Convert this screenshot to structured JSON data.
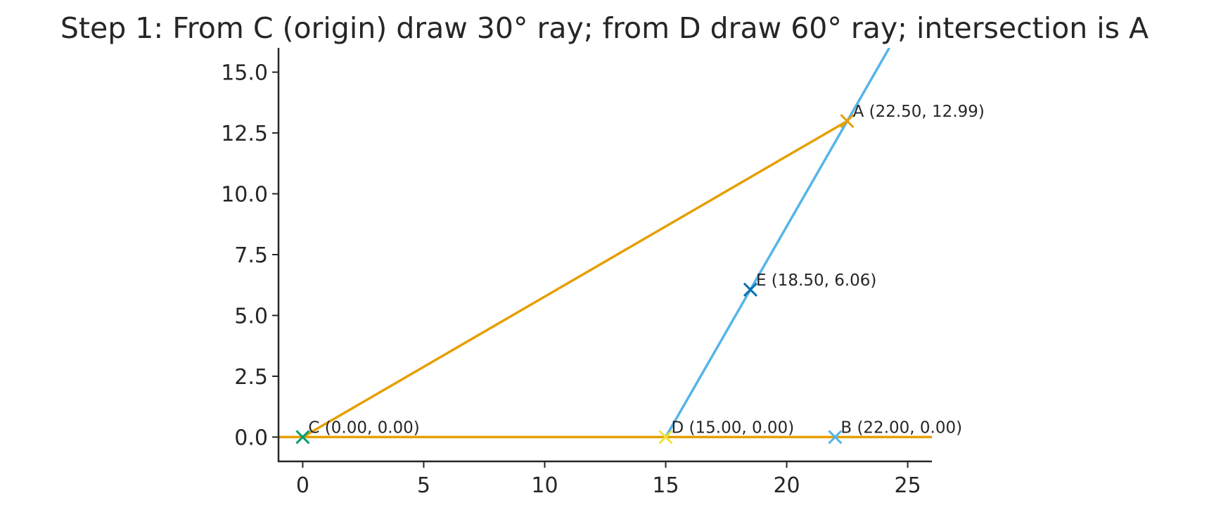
{
  "chart_data": {
    "type": "line",
    "title": "Step 1: From C (origin) draw 30° ray; from D draw 60° ray; intersection is A",
    "xlabel": "",
    "ylabel": "",
    "xlim": [
      -1,
      26
    ],
    "ylim": [
      -1,
      16
    ],
    "grid": false,
    "x_ticks": [
      0,
      5,
      10,
      15,
      20,
      25
    ],
    "x_tick_labels": [
      "0",
      "5",
      "10",
      "15",
      "20",
      "25"
    ],
    "y_ticks": [
      0.0,
      2.5,
      5.0,
      7.5,
      10.0,
      12.5,
      15.0
    ],
    "y_tick_labels": [
      "0.0",
      "2.5",
      "5.0",
      "7.5",
      "10.0",
      "12.5",
      "15.0"
    ],
    "lines": [
      {
        "id": "baseline",
        "color": "#E69F00",
        "points": [
          [
            -1,
            0
          ],
          [
            26,
            0
          ]
        ]
      },
      {
        "id": "ray-30-from-c",
        "color": "#E69F00",
        "points": [
          [
            0,
            0
          ],
          [
            22.5,
            12.99
          ]
        ]
      },
      {
        "id": "ray-60-from-d",
        "color": "#56B4E9",
        "points": [
          [
            15,
            0
          ],
          [
            24.24,
            16
          ]
        ]
      }
    ],
    "points": [
      {
        "name": "C",
        "x": 0,
        "y": 0,
        "label": "C (0.00, 0.00)",
        "color": "#009E73"
      },
      {
        "name": "D",
        "x": 15,
        "y": 0,
        "label": "D (15.00, 0.00)",
        "color": "#F0E442"
      },
      {
        "name": "B",
        "x": 22,
        "y": 0,
        "label": "B (22.00, 0.00)",
        "color": "#56B4E9"
      },
      {
        "name": "E",
        "x": 18.5,
        "y": 6.06,
        "label": "E (18.50, 6.06)",
        "color": "#0072B2"
      },
      {
        "name": "A",
        "x": 22.5,
        "y": 12.99,
        "label": "A (22.50, 12.99)",
        "color": "#E69F00"
      }
    ]
  }
}
